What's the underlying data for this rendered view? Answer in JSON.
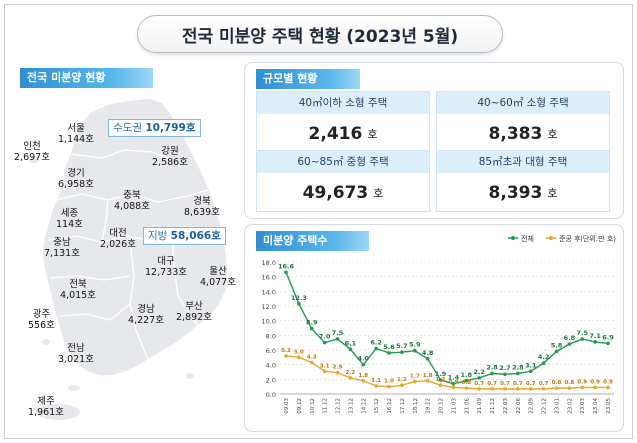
{
  "title": "전국 미분양 주택 현황  (2023년 5월)",
  "map_section": {
    "label": "전국 미분양 현황",
    "capital_callout": {
      "name": "수도권",
      "value": "10,799호"
    },
    "local_callout": {
      "name": "지방",
      "value": "58,066호"
    },
    "regions": [
      {
        "name": "서울",
        "value": "1,144호"
      },
      {
        "name": "인천",
        "value": "2,697호"
      },
      {
        "name": "경기",
        "value": "6,958호"
      },
      {
        "name": "강원",
        "value": "2,586호"
      },
      {
        "name": "충북",
        "value": "4,088호"
      },
      {
        "name": "세종",
        "value": "114호"
      },
      {
        "name": "충남",
        "value": "7,131호"
      },
      {
        "name": "대전",
        "value": "2,026호"
      },
      {
        "name": "경북",
        "value": "8,639호"
      },
      {
        "name": "대구",
        "value": "12,733호"
      },
      {
        "name": "전북",
        "value": "4,015호"
      },
      {
        "name": "울산",
        "value": "4,077호"
      },
      {
        "name": "광주",
        "value": "556호"
      },
      {
        "name": "경남",
        "value": "4,227호"
      },
      {
        "name": "부산",
        "value": "2,892호"
      },
      {
        "name": "전남",
        "value": "3,021호"
      },
      {
        "name": "제주",
        "value": "1,961호"
      }
    ],
    "colors": {
      "map_fill": "#e6e8ec",
      "map_stroke": "#ffffff",
      "accent": "#2f8fd3"
    }
  },
  "size_section": {
    "label": "규모별 현황",
    "cards": [
      {
        "head": "40㎡이하 소형 주택",
        "value": "2,416",
        "unit": "호"
      },
      {
        "head": "40~60㎡ 소형 주택",
        "value": "8,383",
        "unit": "호"
      },
      {
        "head": "60~85㎡ 중형 주택",
        "value": "49,673",
        "unit": "호"
      },
      {
        "head": "85㎡초과 대형 주택",
        "value": "8,393",
        "unit": "호"
      }
    ]
  },
  "chart_section": {
    "label": "미분양 주택수"
  },
  "chart_data": {
    "type": "line",
    "unit_note": "(단위:만 호)",
    "x": [
      "09.03",
      "09.12",
      "10.12",
      "11.12",
      "12.12",
      "13.12",
      "14.12",
      "15.12",
      "16.12",
      "17.12",
      "18.12",
      "19.12",
      "20.12",
      "21.03",
      "21.06",
      "21.09",
      "21.12",
      "22.03",
      "22.06",
      "22.09",
      "22.12",
      "23.01",
      "23.02",
      "23.03",
      "23.04",
      "23.05"
    ],
    "x_tick_labels": [
      "09.03",
      "09.12",
      "10.12",
      "11.12",
      "12.12",
      "13.12",
      "14.12",
      "15.12",
      "16.12",
      "17.12",
      "18.12",
      "19.12",
      "20.12",
      "21.03",
      "21.06",
      "21.09",
      "21.12",
      "22.03",
      "22.06",
      "22.09",
      "22.12",
      "23.01",
      "23.02",
      "23.03",
      "23.04",
      "23.05",
      "",
      "",
      "",
      "",
      "",
      "",
      "",
      "",
      "",
      "",
      "",
      "",
      "",
      "",
      "",
      "",
      "",
      ""
    ],
    "ylim": [
      0,
      18
    ],
    "yticks": [
      "0.0",
      "2.0",
      "4.0",
      "6.0",
      "8.0",
      "10.0",
      "12.0",
      "14.0",
      "16.0",
      "18.0"
    ],
    "grid": true,
    "legend": "top-right",
    "series": [
      {
        "name": "전체",
        "color": "#1f9a4e",
        "values": [
          16.6,
          12.3,
          8.9,
          7.0,
          7.5,
          6.1,
          4.0,
          6.2,
          5.6,
          5.7,
          5.9,
          4.8,
          1.9,
          1.4,
          1.8,
          2.2,
          2.8,
          2.7,
          2.8,
          3.1,
          4.2,
          5.8,
          6.8,
          7.5,
          7.1,
          6.9
        ],
        "labels": [
          "16.6",
          "12.3",
          "8.9",
          "7.0",
          "7.5",
          "6.1",
          "4.0",
          "6.2",
          "5.6",
          "5.7",
          "5.9",
          "4.8",
          "1.9",
          "1.4",
          "1.8",
          "2.2",
          "2.8",
          "2.7",
          "2.8",
          "3.1",
          "4.2",
          "5.8",
          "6.8",
          "7.5",
          "7.1",
          "6.9"
        ]
      },
      {
        "name": "준공 후",
        "color": "#e8a62c",
        "values": [
          5.2,
          5.0,
          4.3,
          3.1,
          2.9,
          2.2,
          1.8,
          1.1,
          1.0,
          1.2,
          1.7,
          1.8,
          1.2,
          0.9,
          0.8,
          0.7,
          0.7,
          0.7,
          0.7,
          0.7,
          0.7,
          0.8,
          0.8,
          0.9,
          0.9,
          0.9
        ],
        "labels": [
          "5.2",
          "5.0",
          "4.3",
          "3.1",
          "2.9",
          "2.2",
          "1.8",
          "1.1",
          "1.0",
          "1.2",
          "1.7",
          "1.8",
          "1.2",
          "0.9",
          "0.8",
          "0.7",
          "0.7",
          "0.7",
          "0.7",
          "0.7",
          "0.7",
          "0.8",
          "0.8",
          "0.9",
          "0.9",
          "0.9"
        ]
      }
    ]
  }
}
